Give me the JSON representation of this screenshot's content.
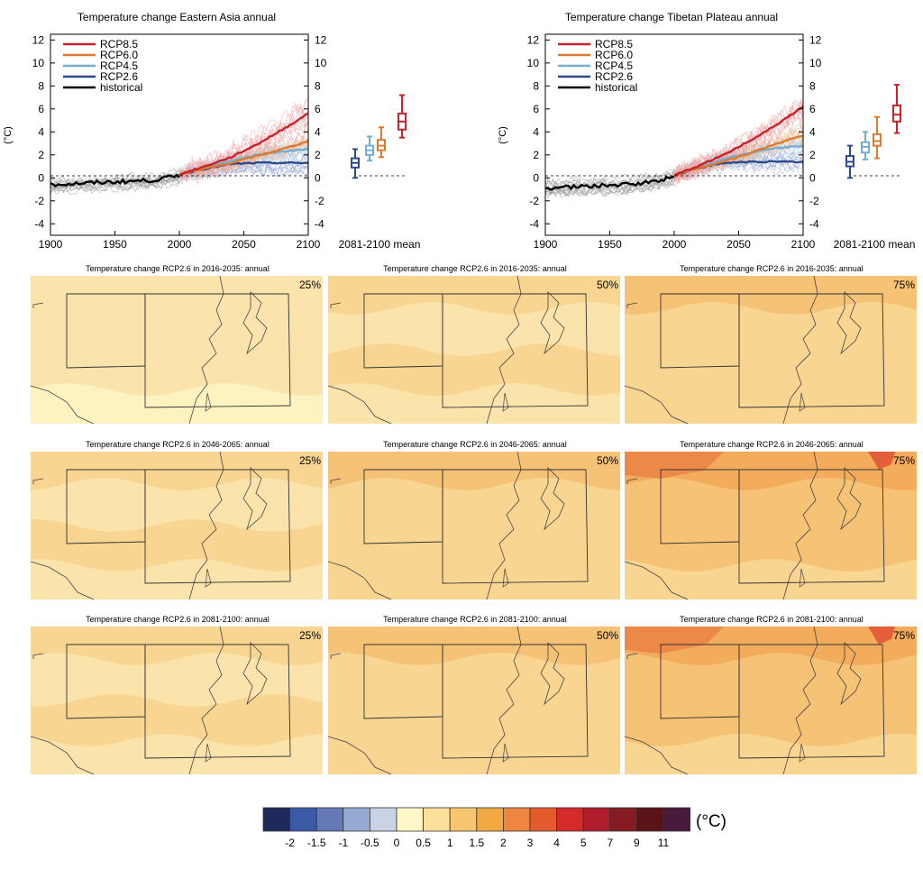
{
  "timeseries": [
    {
      "title": "Temperature change Eastern Asia annual",
      "ylabel": "(°C)",
      "yticks": [
        "-4",
        "-2",
        "0",
        "2",
        "4",
        "6",
        "8",
        "10",
        "12"
      ],
      "xticks": [
        "1900",
        "1950",
        "2000",
        "2050",
        "2100"
      ],
      "box_label": "2081-2100 mean",
      "legend": [
        "RCP8.5",
        "RCP6.0",
        "RCP4.5",
        "RCP2.6",
        "historical"
      ]
    },
    {
      "title": "Temperature change Tibetan Plateau annual",
      "ylabel": "(°C)",
      "yticks": [
        "-4",
        "-2",
        "0",
        "2",
        "4",
        "6",
        "8",
        "10",
        "12"
      ],
      "xticks": [
        "1900",
        "1950",
        "2000",
        "2050",
        "2100"
      ],
      "box_label": "2081-2100 mean",
      "legend": [
        "RCP8.5",
        "RCP6.0",
        "RCP4.5",
        "RCP2.6",
        "historical"
      ]
    }
  ],
  "maps": [
    {
      "title": "Temperature change RCP2.6 in 2016-2035: annual",
      "pct": "25%"
    },
    {
      "title": "Temperature change RCP2.6 in 2016-2035: annual",
      "pct": "50%"
    },
    {
      "title": "Temperature change RCP2.6 in 2016-2035: annual",
      "pct": "75%"
    },
    {
      "title": "Temperature change RCP2.6 in 2046-2065: annual",
      "pct": "25%"
    },
    {
      "title": "Temperature change RCP2.6 in 2046-2065: annual",
      "pct": "50%"
    },
    {
      "title": "Temperature change RCP2.6 in 2046-2065: annual",
      "pct": "75%"
    },
    {
      "title": "Temperature change RCP2.6 in 2081-2100: annual",
      "pct": "25%"
    },
    {
      "title": "Temperature change RCP2.6 in 2081-2100: annual",
      "pct": "50%"
    },
    {
      "title": "Temperature change RCP2.6 in 2081-2100: annual",
      "pct": "75%"
    }
  ],
  "colorbar": {
    "unit": "(°C)",
    "labels": [
      "-2",
      "-1.5",
      "-1",
      "-0.5",
      "0",
      "0.5",
      "1",
      "1.5",
      "2",
      "3",
      "4",
      "5",
      "7",
      "9",
      "11"
    ],
    "colors": [
      "#1f2a5c",
      "#3a5aa5",
      "#6579b6",
      "#97aad3",
      "#c9d3e3",
      "#fff7c8",
      "#fddf9c",
      "#f8c66e",
      "#f2a944",
      "#ec8640",
      "#e45a2c",
      "#d42a2a",
      "#b01e2e",
      "#861b22",
      "#5a1418",
      "#4a1a3c"
    ]
  },
  "chart_data": [
    {
      "type": "line",
      "title": "Temperature change Eastern Asia annual",
      "ylabel": "(°C)",
      "xlim": [
        1900,
        2100
      ],
      "ylim": [
        -5,
        12.5
      ],
      "x": [
        1900,
        1920,
        1940,
        1960,
        1980,
        2000,
        2020,
        2040,
        2060,
        2080,
        2100
      ],
      "series": [
        {
          "name": "historical",
          "color": "#000000",
          "x": [
            1900,
            1920,
            1940,
            1960,
            1980,
            2000
          ],
          "values": [
            -0.6,
            -0.5,
            -0.4,
            -0.3,
            -0.2,
            0.2
          ]
        },
        {
          "name": "RCP2.6",
          "color": "#2e4a8c",
          "x": [
            2000,
            2020,
            2040,
            2060,
            2080,
            2100
          ],
          "values": [
            0.3,
            0.8,
            1.2,
            1.3,
            1.3,
            1.3
          ]
        },
        {
          "name": "RCP4.5",
          "color": "#74aed4",
          "x": [
            2000,
            2020,
            2040,
            2060,
            2080,
            2100
          ],
          "values": [
            0.3,
            0.9,
            1.5,
            2.0,
            2.3,
            2.5
          ]
        },
        {
          "name": "RCP6.0",
          "color": "#e07a30",
          "x": [
            2000,
            2020,
            2040,
            2060,
            2080,
            2100
          ],
          "values": [
            0.3,
            0.8,
            1.3,
            1.9,
            2.5,
            3.2
          ]
        },
        {
          "name": "RCP8.5",
          "color": "#c9222a",
          "x": [
            2000,
            2020,
            2040,
            2060,
            2080,
            2100
          ],
          "values": [
            0.3,
            1.0,
            1.8,
            2.9,
            4.2,
            5.6
          ]
        }
      ],
      "boxplot_2081_2100": [
        {
          "name": "RCP2.6",
          "min": 0.0,
          "q1": 0.9,
          "median": 1.3,
          "q3": 1.7,
          "max": 2.5
        },
        {
          "name": "RCP4.5",
          "min": 1.5,
          "q1": 2.0,
          "median": 2.4,
          "q3": 2.8,
          "max": 3.6
        },
        {
          "name": "RCP6.0",
          "min": 1.8,
          "q1": 2.4,
          "median": 2.8,
          "q3": 3.3,
          "max": 4.4
        },
        {
          "name": "RCP8.5",
          "min": 3.5,
          "q1": 4.2,
          "median": 4.9,
          "q3": 5.6,
          "max": 7.2
        }
      ]
    },
    {
      "type": "line",
      "title": "Temperature change Tibetan Plateau annual",
      "ylabel": "(°C)",
      "xlim": [
        1900,
        2100
      ],
      "ylim": [
        -5,
        12.5
      ],
      "x": [
        1900,
        1920,
        1940,
        1960,
        1980,
        2000,
        2020,
        2040,
        2060,
        2080,
        2100
      ],
      "series": [
        {
          "name": "historical",
          "color": "#000000",
          "x": [
            1900,
            1920,
            1940,
            1960,
            1980,
            2000
          ],
          "values": [
            -0.9,
            -0.8,
            -0.7,
            -0.6,
            -0.4,
            0.1
          ]
        },
        {
          "name": "RCP2.6",
          "color": "#2e4a8c",
          "x": [
            2000,
            2020,
            2040,
            2060,
            2080,
            2100
          ],
          "values": [
            0.2,
            0.9,
            1.3,
            1.4,
            1.4,
            1.4
          ]
        },
        {
          "name": "RCP4.5",
          "color": "#74aed4",
          "x": [
            2000,
            2020,
            2040,
            2060,
            2080,
            2100
          ],
          "values": [
            0.2,
            1.0,
            1.7,
            2.2,
            2.6,
            2.8
          ]
        },
        {
          "name": "RCP6.0",
          "color": "#e07a30",
          "x": [
            2000,
            2020,
            2040,
            2060,
            2080,
            2100
          ],
          "values": [
            0.2,
            0.9,
            1.5,
            2.2,
            3.0,
            3.7
          ]
        },
        {
          "name": "RCP8.5",
          "color": "#c9222a",
          "x": [
            2000,
            2020,
            2040,
            2060,
            2080,
            2100
          ],
          "values": [
            0.2,
            1.1,
            2.1,
            3.3,
            4.7,
            6.2
          ]
        }
      ],
      "boxplot_2081_2100": [
        {
          "name": "RCP2.6",
          "min": 0.0,
          "q1": 1.0,
          "median": 1.4,
          "q3": 1.9,
          "max": 2.8
        },
        {
          "name": "RCP4.5",
          "min": 1.6,
          "q1": 2.2,
          "median": 2.7,
          "q3": 3.1,
          "max": 4.0
        },
        {
          "name": "RCP6.0",
          "min": 1.7,
          "q1": 2.8,
          "median": 3.2,
          "q3": 3.8,
          "max": 5.3
        },
        {
          "name": "RCP8.5",
          "min": 3.9,
          "q1": 4.9,
          "median": 5.5,
          "q3": 6.3,
          "max": 8.1
        }
      ]
    }
  ]
}
